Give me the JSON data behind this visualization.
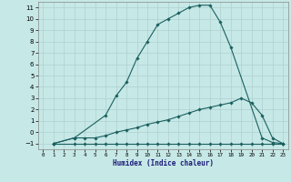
{
  "xlabel": "Humidex (Indice chaleur)",
  "bg_color": "#c6e8e6",
  "grid_color": "#aed0ce",
  "line_color": "#1a6060",
  "xlim": [
    -0.5,
    23.5
  ],
  "ylim": [
    -1.5,
    11.5
  ],
  "xticks": [
    0,
    1,
    2,
    3,
    4,
    5,
    6,
    7,
    8,
    9,
    10,
    11,
    12,
    13,
    14,
    15,
    16,
    17,
    18,
    19,
    20,
    21,
    22,
    23
  ],
  "yticks": [
    -1,
    0,
    1,
    2,
    3,
    4,
    5,
    6,
    7,
    8,
    9,
    10,
    11
  ],
  "line1_x": [
    1,
    3,
    6,
    7,
    8,
    9,
    10,
    11,
    12,
    13,
    14,
    15,
    16,
    17,
    18,
    21,
    22,
    23
  ],
  "line1_y": [
    -1,
    -0.5,
    1.5,
    3.2,
    4.4,
    6.5,
    8.0,
    9.5,
    10.0,
    10.5,
    11.0,
    11.2,
    11.2,
    9.7,
    7.5,
    -0.5,
    -0.9,
    -1.0
  ],
  "line2_x": [
    1,
    3,
    4,
    5,
    6,
    7,
    8,
    9,
    10,
    11,
    12,
    13,
    14,
    15,
    16,
    17,
    18,
    19,
    20,
    21,
    22,
    23
  ],
  "line2_y": [
    -1,
    -0.5,
    -0.5,
    -0.5,
    -0.3,
    0.0,
    0.2,
    0.4,
    0.7,
    0.9,
    1.1,
    1.4,
    1.7,
    2.0,
    2.2,
    2.4,
    2.6,
    3.0,
    2.6,
    1.5,
    -0.5,
    -1.0
  ],
  "line3_x": [
    1,
    3,
    4,
    5,
    6,
    7,
    8,
    9,
    10,
    11,
    12,
    13,
    14,
    15,
    16,
    17,
    18,
    19,
    20,
    21,
    22,
    23
  ],
  "line3_y": [
    -1,
    -1,
    -1,
    -1,
    -1,
    -1,
    -1,
    -1,
    -1,
    -1,
    -1,
    -1,
    -1,
    -1,
    -1,
    -1,
    -1,
    -1,
    -1,
    -1,
    -1,
    -1
  ]
}
